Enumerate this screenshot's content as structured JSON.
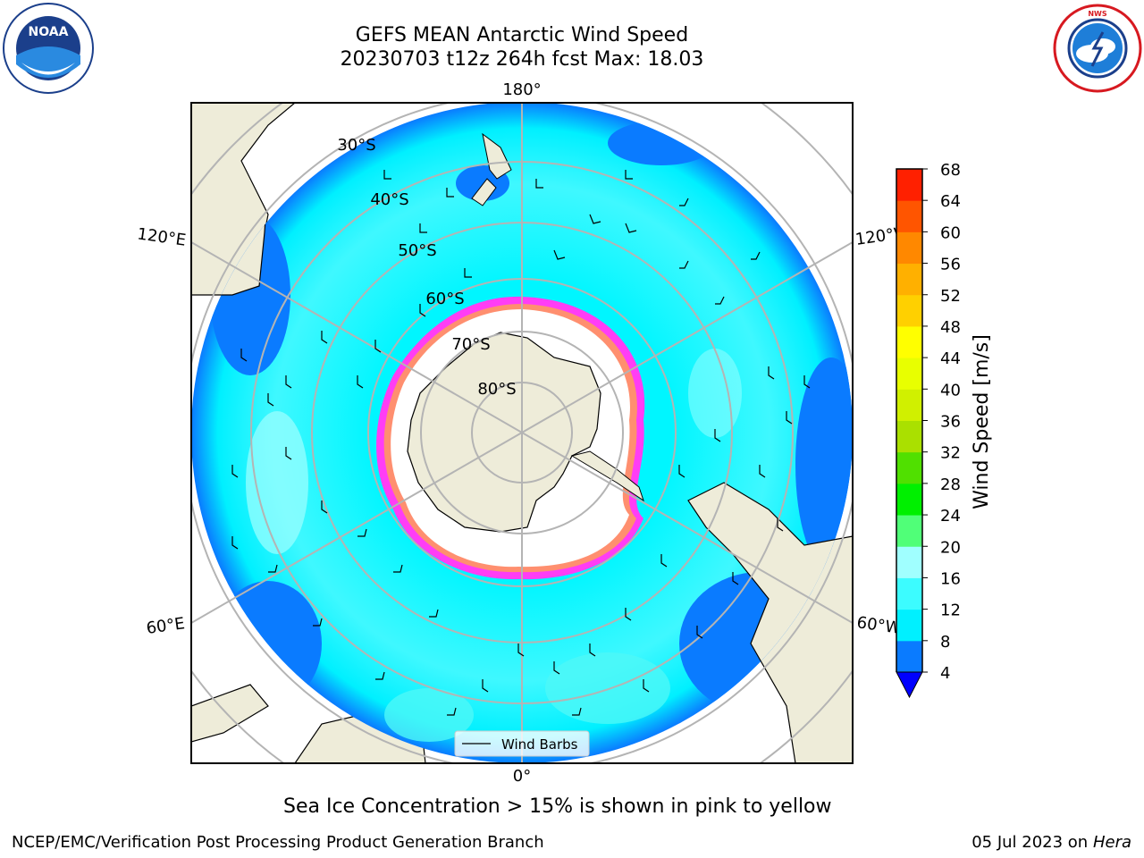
{
  "title": {
    "line1": "GEFS MEAN Antarctic Wind Speed",
    "line2": "20230703 t12z 264h fcst   Max: 18.03"
  },
  "logos": {
    "left": "noaa-logo",
    "right": "national-weather-service-logo",
    "noaa_text": "NOAA",
    "noaa_ring_text": "NATIONAL OCEANIC AND ATMOSPHERIC ADMINISTRATION · U.S. DEPARTMENT OF COMMERCE",
    "nws_ring_text": "NATIONAL WEATHER SERVICE"
  },
  "map": {
    "projection": "south-polar-stereographic",
    "longitude_labels": {
      "top": "180°",
      "bottom": "0°",
      "left_upper": "120°E",
      "left_lower": "60°E",
      "right_upper": "120°W",
      "right_lower": "60°W"
    },
    "latitude_labels": [
      "30°S",
      "40°S",
      "50°S",
      "60°S",
      "70°S",
      "80°S"
    ],
    "legend_label": "Wind Barbs",
    "colors": {
      "land": "#eeecd9",
      "ocean_low": "#0a7bff",
      "ocean_mid": "#00f6ff",
      "ocean_high": "#4ef7f7",
      "ice_edge_pink": "#ff3df5",
      "ice_edge_yellow": "#ffd400",
      "grid": "#b4b4b4"
    }
  },
  "colorbar": {
    "label": "Wind Speed [m/s]",
    "ticks": [
      "4",
      "8",
      "12",
      "16",
      "20",
      "24",
      "28",
      "32",
      "36",
      "40",
      "44",
      "48",
      "52",
      "56",
      "60",
      "64",
      "68"
    ],
    "colors": [
      "#0a7bff",
      "#00f0ff",
      "#3cfcff",
      "#a0ffff",
      "#50ff78",
      "#00f000",
      "#50e000",
      "#aae000",
      "#d0f000",
      "#e8ff00",
      "#ffff00",
      "#ffd000",
      "#ffb000",
      "#ff8800",
      "#ff5500",
      "#ff2000"
    ],
    "extend_color": "#0000ff"
  },
  "caption": "Sea Ice Concentration > 15% is shown in pink to yellow",
  "footer": {
    "left": "NCEP/EMC/Verification Post Processing Product Generation Branch",
    "right_date": "05 Jul 2023 on ",
    "right_machine": "Hera"
  }
}
